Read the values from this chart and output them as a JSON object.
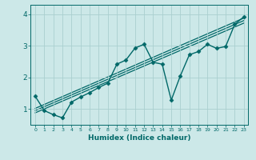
{
  "xlabel": "Humidex (Indice chaleur)",
  "ylabel": "",
  "xlim": [
    -0.5,
    23.5
  ],
  "ylim": [
    0.5,
    4.3
  ],
  "yticks": [
    1,
    2,
    3,
    4
  ],
  "xticks": [
    0,
    1,
    2,
    3,
    4,
    5,
    6,
    7,
    8,
    9,
    10,
    11,
    12,
    13,
    14,
    15,
    16,
    17,
    18,
    19,
    20,
    21,
    22,
    23
  ],
  "background_color": "#cce8e8",
  "grid_color": "#aacfcf",
  "line_color": "#006868",
  "line_width": 1.0,
  "marker": "D",
  "marker_size": 2.5,
  "series": [
    [
      0,
      1.4
    ],
    [
      1,
      0.95
    ],
    [
      2,
      0.82
    ],
    [
      3,
      0.72
    ],
    [
      4,
      1.22
    ],
    [
      5,
      1.38
    ],
    [
      6,
      1.52
    ],
    [
      7,
      1.68
    ],
    [
      8,
      1.82
    ],
    [
      9,
      2.42
    ],
    [
      10,
      2.55
    ],
    [
      11,
      2.93
    ],
    [
      12,
      3.05
    ],
    [
      13,
      2.48
    ],
    [
      14,
      2.42
    ],
    [
      15,
      1.28
    ],
    [
      16,
      2.05
    ],
    [
      17,
      2.72
    ],
    [
      18,
      2.82
    ],
    [
      19,
      3.05
    ],
    [
      20,
      2.92
    ],
    [
      21,
      2.98
    ],
    [
      22,
      3.68
    ],
    [
      23,
      3.92
    ]
  ],
  "regression_lines": [
    {
      "x": [
        0,
        23
      ],
      "y": [
        0.88,
        3.72
      ]
    },
    {
      "x": [
        0,
        23
      ],
      "y": [
        0.95,
        3.8
      ]
    },
    {
      "x": [
        0,
        23
      ],
      "y": [
        1.02,
        3.88
      ]
    }
  ]
}
